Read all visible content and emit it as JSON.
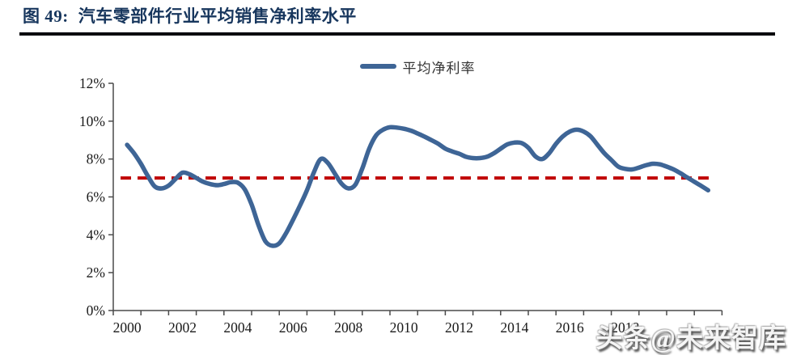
{
  "header": {
    "figure_label": "图 49:",
    "title": "汽车零部件行业平均销售净利率水平"
  },
  "legend": {
    "label": "平均净利率"
  },
  "watermark": {
    "text": "头条@未来智库"
  },
  "colors": {
    "title": "#17365D",
    "rule": "#06080e",
    "line": "#3E6596",
    "reference": "#C00000",
    "axis": "#4a4a4a"
  },
  "chart_data": {
    "type": "line",
    "title": "图 49: 汽车零部件行业平均销售净利率水平",
    "xlabel": "",
    "ylabel": "",
    "x_range": [
      2000,
      2021
    ],
    "y_range": [
      0,
      12
    ],
    "grid": false,
    "legend_position": "top-center",
    "axis_color": "#4a4a4a",
    "y_tick_labels": [
      "0%",
      "2%",
      "4%",
      "6%",
      "8%",
      "10%",
      "12%"
    ],
    "x_tick_labels": [
      "2000",
      "2002",
      "2004",
      "2006",
      "2008",
      "2010",
      "2012",
      "2014",
      "2016",
      "2018"
    ],
    "reference_line": {
      "value": 7.0,
      "style": "dashed",
      "color": "#C00000"
    },
    "series": [
      {
        "name": "平均净利率",
        "color": "#3E6596",
        "unit": "%",
        "points": [
          [
            2000.0,
            8.75
          ],
          [
            2000.25,
            8.3
          ],
          [
            2000.5,
            7.75
          ],
          [
            2000.75,
            7.1
          ],
          [
            2001.0,
            6.55
          ],
          [
            2001.25,
            6.45
          ],
          [
            2001.5,
            6.6
          ],
          [
            2001.75,
            6.95
          ],
          [
            2002.0,
            7.28
          ],
          [
            2002.25,
            7.2
          ],
          [
            2002.5,
            7.0
          ],
          [
            2002.75,
            6.8
          ],
          [
            2003.0,
            6.68
          ],
          [
            2003.25,
            6.62
          ],
          [
            2003.5,
            6.68
          ],
          [
            2003.75,
            6.78
          ],
          [
            2004.0,
            6.75
          ],
          [
            2004.25,
            6.4
          ],
          [
            2004.5,
            5.6
          ],
          [
            2004.75,
            4.5
          ],
          [
            2005.0,
            3.65
          ],
          [
            2005.25,
            3.42
          ],
          [
            2005.5,
            3.55
          ],
          [
            2005.75,
            4.1
          ],
          [
            2006.0,
            4.8
          ],
          [
            2006.25,
            5.55
          ],
          [
            2006.5,
            6.35
          ],
          [
            2006.75,
            7.3
          ],
          [
            2007.0,
            8.0
          ],
          [
            2007.25,
            7.8
          ],
          [
            2007.5,
            7.25
          ],
          [
            2007.75,
            6.7
          ],
          [
            2008.0,
            6.45
          ],
          [
            2008.25,
            6.65
          ],
          [
            2008.5,
            7.5
          ],
          [
            2008.75,
            8.55
          ],
          [
            2009.0,
            9.25
          ],
          [
            2009.25,
            9.55
          ],
          [
            2009.5,
            9.68
          ],
          [
            2009.75,
            9.66
          ],
          [
            2010.0,
            9.6
          ],
          [
            2010.25,
            9.5
          ],
          [
            2010.5,
            9.35
          ],
          [
            2010.75,
            9.18
          ],
          [
            2011.0,
            9.0
          ],
          [
            2011.25,
            8.8
          ],
          [
            2011.5,
            8.55
          ],
          [
            2011.75,
            8.4
          ],
          [
            2012.0,
            8.28
          ],
          [
            2012.25,
            8.12
          ],
          [
            2012.5,
            8.05
          ],
          [
            2012.75,
            8.05
          ],
          [
            2013.0,
            8.12
          ],
          [
            2013.25,
            8.3
          ],
          [
            2013.5,
            8.55
          ],
          [
            2013.75,
            8.78
          ],
          [
            2014.0,
            8.87
          ],
          [
            2014.25,
            8.85
          ],
          [
            2014.5,
            8.6
          ],
          [
            2014.75,
            8.15
          ],
          [
            2015.0,
            8.0
          ],
          [
            2015.25,
            8.3
          ],
          [
            2015.5,
            8.8
          ],
          [
            2015.75,
            9.2
          ],
          [
            2016.0,
            9.45
          ],
          [
            2016.25,
            9.55
          ],
          [
            2016.5,
            9.45
          ],
          [
            2016.75,
            9.2
          ],
          [
            2017.0,
            8.75
          ],
          [
            2017.25,
            8.3
          ],
          [
            2017.5,
            7.95
          ],
          [
            2017.75,
            7.6
          ],
          [
            2018.0,
            7.48
          ],
          [
            2018.25,
            7.45
          ],
          [
            2018.5,
            7.55
          ],
          [
            2018.75,
            7.67
          ],
          [
            2019.0,
            7.75
          ],
          [
            2019.25,
            7.72
          ],
          [
            2019.5,
            7.6
          ],
          [
            2019.75,
            7.45
          ],
          [
            2020.0,
            7.25
          ],
          [
            2020.25,
            7.02
          ],
          [
            2020.5,
            6.8
          ],
          [
            2020.75,
            6.58
          ],
          [
            2021.0,
            6.35
          ]
        ]
      }
    ]
  }
}
